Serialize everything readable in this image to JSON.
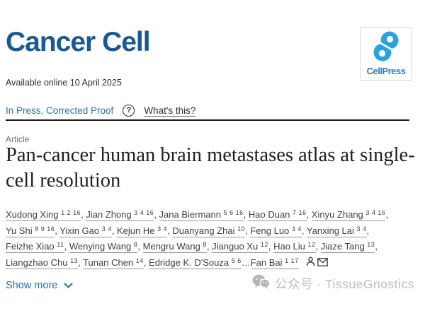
{
  "journal": {
    "name": "Cancer Cell",
    "brand_color": "#1a5a8d",
    "publisher": {
      "name": "CellPress",
      "logo_icon": "cellpress-swirl-icon",
      "blue": "#2aa3dc",
      "text_blue": "#2e7ec0"
    }
  },
  "meta": {
    "available_online": "Available online 10 April 2025",
    "status": "In Press, Corrected Proof",
    "help_icon_glyph": "?",
    "whats_this_label": "What's this?"
  },
  "article": {
    "type_label": "Article",
    "title": "Pan-cancer human brain metastases atlas at single-cell resolution"
  },
  "authors": {
    "separator": ", ",
    "ellipsis": "…",
    "list": [
      {
        "name": "Xudong Xing",
        "sup": "1 2 16"
      },
      {
        "name": "Jian Zhong",
        "sup": "3 4 16"
      },
      {
        "name": "Jana Biermann",
        "sup": "5 6 16"
      },
      {
        "name": "Hao Duan",
        "sup": "7 16"
      },
      {
        "name": "Xinyu Zhang",
        "sup": "3 4 16"
      },
      {
        "name": "Yu Shi",
        "sup": "8 9 16"
      },
      {
        "name": "Yixin Gao",
        "sup": "3 4"
      },
      {
        "name": "Kejun He",
        "sup": "3 4"
      },
      {
        "name": "Duanyang Zhai",
        "sup": "10"
      },
      {
        "name": "Feng Luo",
        "sup": "3 4"
      },
      {
        "name": "Yanxing Lai",
        "sup": "3 4"
      },
      {
        "name": "Feizhe Xiao",
        "sup": "11"
      },
      {
        "name": "Wenying Wang",
        "sup": "8"
      },
      {
        "name": "Mengru Wang",
        "sup": "8"
      },
      {
        "name": "Jianguo Xu",
        "sup": "12"
      },
      {
        "name": "Hao Liu",
        "sup": "12"
      },
      {
        "name": "Jiaze Tang",
        "sup": "13"
      },
      {
        "name": "Liangzhao Chu",
        "sup": "13"
      },
      {
        "name": "Tunan Chen",
        "sup": "14"
      },
      {
        "name": "Edridge K. D'Souza",
        "sup": "5 6"
      },
      {
        "name": "Fan Bai",
        "sup": "1 17",
        "ellipsis_before": true,
        "corresponding": true
      }
    ],
    "last_author_icons": [
      "person-icon",
      "mail-icon"
    ]
  },
  "actions": {
    "show_more_label": "Show more",
    "chevron_icon": "chevron-down-icon"
  },
  "watermark": {
    "icon": "wechat-icon",
    "text": "公众号 · TissueGnostics"
  }
}
